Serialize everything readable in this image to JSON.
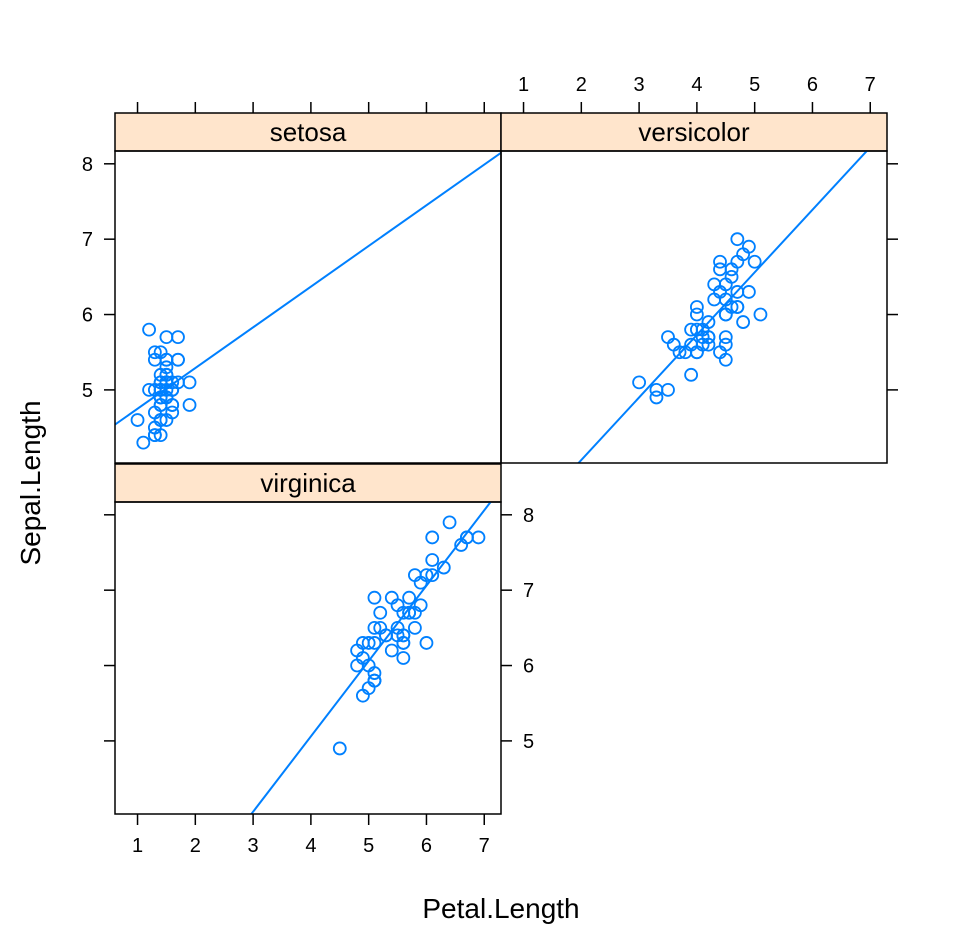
{
  "chart_data": {
    "type": "scatter",
    "xlabel": "Petal.Length",
    "ylabel": "Sepal.Length",
    "xlim": [
      0.61,
      7.29
    ],
    "ylim": [
      4.03,
      8.17
    ],
    "x_ticks": [
      1,
      2,
      3,
      4,
      5,
      6,
      7
    ],
    "y_ticks": [
      5,
      6,
      7,
      8
    ],
    "grid": false,
    "colors": {
      "points": "#0080ff",
      "line": "#0080ff",
      "strip_bg": "#ffe5cc",
      "frame": "#000000"
    },
    "panels": [
      {
        "name": "setosa",
        "points": [
          [
            1.4,
            5.1
          ],
          [
            1.4,
            4.9
          ],
          [
            1.3,
            4.7
          ],
          [
            1.5,
            4.6
          ],
          [
            1.4,
            5.0
          ],
          [
            1.7,
            5.4
          ],
          [
            1.4,
            4.6
          ],
          [
            1.5,
            5.0
          ],
          [
            1.4,
            4.4
          ],
          [
            1.5,
            4.9
          ],
          [
            1.5,
            5.4
          ],
          [
            1.6,
            4.8
          ],
          [
            1.4,
            4.8
          ],
          [
            1.1,
            4.3
          ],
          [
            1.2,
            5.8
          ],
          [
            1.5,
            5.7
          ],
          [
            1.3,
            5.4
          ],
          [
            1.4,
            5.1
          ],
          [
            1.7,
            5.7
          ],
          [
            1.5,
            5.1
          ],
          [
            1.7,
            5.4
          ],
          [
            1.5,
            5.1
          ],
          [
            1.0,
            4.6
          ],
          [
            1.7,
            5.1
          ],
          [
            1.9,
            4.8
          ],
          [
            1.6,
            5.0
          ],
          [
            1.6,
            5.0
          ],
          [
            1.5,
            5.2
          ],
          [
            1.4,
            5.2
          ],
          [
            1.6,
            4.7
          ],
          [
            1.6,
            4.8
          ],
          [
            1.5,
            5.4
          ],
          [
            1.5,
            5.2
          ],
          [
            1.4,
            5.5
          ],
          [
            1.5,
            4.9
          ],
          [
            1.2,
            5.0
          ],
          [
            1.3,
            5.5
          ],
          [
            1.4,
            4.9
          ],
          [
            1.3,
            4.4
          ],
          [
            1.5,
            5.1
          ],
          [
            1.3,
            5.0
          ],
          [
            1.3,
            4.5
          ],
          [
            1.3,
            4.4
          ],
          [
            1.6,
            5.0
          ],
          [
            1.9,
            5.1
          ],
          [
            1.4,
            4.8
          ],
          [
            1.6,
            5.1
          ],
          [
            1.4,
            4.6
          ],
          [
            1.5,
            5.3
          ],
          [
            1.4,
            5.0
          ]
        ],
        "fit": {
          "intercept": 4.21,
          "slope": 0.54
        }
      },
      {
        "name": "versicolor",
        "points": [
          [
            4.7,
            7.0
          ],
          [
            4.5,
            6.4
          ],
          [
            4.9,
            6.9
          ],
          [
            4.0,
            5.5
          ],
          [
            4.6,
            6.5
          ],
          [
            4.5,
            5.7
          ],
          [
            4.7,
            6.3
          ],
          [
            3.3,
            4.9
          ],
          [
            4.6,
            6.6
          ],
          [
            3.9,
            5.2
          ],
          [
            3.5,
            5.0
          ],
          [
            4.2,
            5.9
          ],
          [
            4.0,
            6.0
          ],
          [
            4.7,
            6.1
          ],
          [
            3.6,
            5.6
          ],
          [
            4.4,
            6.7
          ],
          [
            4.5,
            5.6
          ],
          [
            4.1,
            5.8
          ],
          [
            4.5,
            6.2
          ],
          [
            3.9,
            5.6
          ],
          [
            4.8,
            5.9
          ],
          [
            4.0,
            6.1
          ],
          [
            4.9,
            6.3
          ],
          [
            4.7,
            6.1
          ],
          [
            4.3,
            6.4
          ],
          [
            4.4,
            6.6
          ],
          [
            4.8,
            6.8
          ],
          [
            5.0,
            6.7
          ],
          [
            4.5,
            6.0
          ],
          [
            3.5,
            5.7
          ],
          [
            3.8,
            5.5
          ],
          [
            3.7,
            5.5
          ],
          [
            3.9,
            5.8
          ],
          [
            5.1,
            6.0
          ],
          [
            4.5,
            5.4
          ],
          [
            4.5,
            6.0
          ],
          [
            4.7,
            6.7
          ],
          [
            4.4,
            6.3
          ],
          [
            4.1,
            5.6
          ],
          [
            4.0,
            5.5
          ],
          [
            4.4,
            5.5
          ],
          [
            4.6,
            6.1
          ],
          [
            4.0,
            5.8
          ],
          [
            3.3,
            5.0
          ],
          [
            4.2,
            5.6
          ],
          [
            4.2,
            5.7
          ],
          [
            4.2,
            5.7
          ],
          [
            4.3,
            6.2
          ],
          [
            3.0,
            5.1
          ],
          [
            4.1,
            5.7
          ]
        ],
        "fit": {
          "intercept": 2.41,
          "slope": 0.83
        }
      },
      {
        "name": "virginica",
        "points": [
          [
            6.0,
            6.3
          ],
          [
            5.1,
            5.8
          ],
          [
            5.9,
            7.1
          ],
          [
            5.6,
            6.3
          ],
          [
            5.8,
            6.5
          ],
          [
            6.6,
            7.6
          ],
          [
            4.5,
            4.9
          ],
          [
            6.3,
            7.3
          ],
          [
            5.8,
            6.7
          ],
          [
            6.1,
            7.2
          ],
          [
            5.1,
            6.5
          ],
          [
            5.3,
            6.4
          ],
          [
            5.5,
            6.8
          ],
          [
            5.0,
            5.7
          ],
          [
            5.1,
            5.8
          ],
          [
            5.3,
            6.4
          ],
          [
            5.5,
            6.5
          ],
          [
            6.7,
            7.7
          ],
          [
            6.9,
            7.7
          ],
          [
            5.0,
            6.0
          ],
          [
            5.7,
            6.9
          ],
          [
            4.9,
            5.6
          ],
          [
            6.7,
            7.7
          ],
          [
            4.9,
            6.3
          ],
          [
            5.7,
            6.7
          ],
          [
            6.0,
            7.2
          ],
          [
            4.8,
            6.2
          ],
          [
            4.9,
            6.1
          ],
          [
            5.6,
            6.4
          ],
          [
            5.8,
            7.2
          ],
          [
            6.1,
            7.4
          ],
          [
            6.4,
            7.9
          ],
          [
            5.6,
            6.4
          ],
          [
            5.1,
            6.3
          ],
          [
            5.6,
            6.1
          ],
          [
            6.1,
            7.7
          ],
          [
            5.6,
            6.3
          ],
          [
            5.5,
            6.4
          ],
          [
            4.8,
            6.0
          ],
          [
            5.4,
            6.9
          ],
          [
            5.6,
            6.7
          ],
          [
            5.1,
            6.9
          ],
          [
            5.1,
            5.8
          ],
          [
            5.9,
            6.8
          ],
          [
            5.7,
            6.7
          ],
          [
            5.2,
            6.7
          ],
          [
            5.0,
            6.3
          ],
          [
            5.2,
            6.5
          ],
          [
            5.4,
            6.2
          ],
          [
            5.1,
            5.9
          ]
        ],
        "fit": {
          "intercept": 1.06,
          "slope": 1.0
        }
      }
    ]
  }
}
